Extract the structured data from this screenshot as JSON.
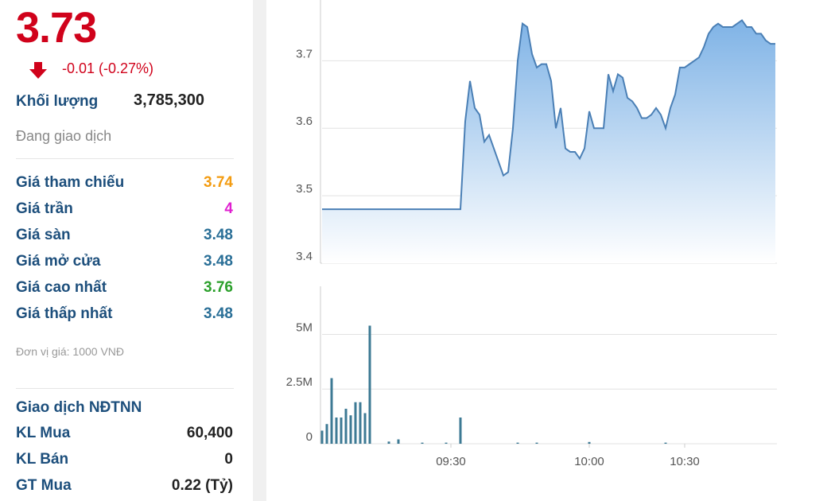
{
  "panel": {
    "price": "3.73",
    "change": "-0.01 (-0.27%)",
    "volume_label": "Khối lượng",
    "volume": "3,785,300",
    "status": "Đang giao dịch",
    "rows": [
      {
        "label": "Giá tham chiếu",
        "value": "3.74",
        "color": "#f39c12"
      },
      {
        "label": "Giá trần",
        "value": "4",
        "color": "#e020d0"
      },
      {
        "label": "Giá sàn",
        "value": "3.48",
        "color": "#2a6f97"
      },
      {
        "label": "Giá mở cửa",
        "value": "3.48",
        "color": "#2a6f97"
      },
      {
        "label": "Giá cao nhất",
        "value": "3.76",
        "color": "#2ca02c"
      },
      {
        "label": "Giá thấp nhất",
        "value": "3.48",
        "color": "#2a6f97"
      }
    ],
    "unit_note": "Đơn vị giá: 1000 VNĐ",
    "foreign_title": "Giao dịch NĐTNN",
    "foreign_rows": [
      {
        "label": "KL Mua",
        "value": "60,400"
      },
      {
        "label": "KL Bán",
        "value": "0"
      },
      {
        "label": "GT Mua",
        "value": "0.22 (Tỷ)"
      }
    ]
  },
  "chart_data": [
    {
      "type": "area",
      "color": "#4a7fb5",
      "values": [
        3.48,
        3.48,
        3.48,
        3.48,
        3.48,
        3.48,
        3.48,
        3.48,
        3.48,
        3.48,
        3.48,
        3.48,
        3.48,
        3.48,
        3.48,
        3.48,
        3.48,
        3.48,
        3.48,
        3.48,
        3.48,
        3.48,
        3.48,
        3.48,
        3.48,
        3.48,
        3.48,
        3.48,
        3.48,
        3.48,
        3.61,
        3.67,
        3.63,
        3.62,
        3.58,
        3.59,
        3.57,
        3.55,
        3.53,
        3.535,
        3.6,
        3.7,
        3.755,
        3.75,
        3.71,
        3.69,
        3.695,
        3.695,
        3.67,
        3.6,
        3.63,
        3.57,
        3.565,
        3.565,
        3.555,
        3.57,
        3.625,
        3.6,
        3.6,
        3.6,
        3.68,
        3.655,
        3.68,
        3.675,
        3.645,
        3.64,
        3.63,
        3.615,
        3.615,
        3.62,
        3.63,
        3.62,
        3.6,
        3.63,
        3.65,
        3.69,
        3.69,
        3.695,
        3.7,
        3.705,
        3.72,
        3.74,
        3.75,
        3.755,
        3.75,
        3.75,
        3.75,
        3.755,
        3.76,
        3.75,
        3.75,
        3.74,
        3.74,
        3.73,
        3.725,
        3.725
      ],
      "ylim": [
        3.4,
        3.79
      ],
      "yticks": [
        3.4,
        3.5,
        3.6,
        3.7
      ],
      "grid": true
    },
    {
      "type": "bar",
      "color": "#3d7a94",
      "categories": [
        null,
        null,
        null,
        null,
        null,
        null,
        null,
        null,
        null,
        null,
        null,
        null,
        null,
        null,
        null,
        null,
        null,
        null,
        null,
        null,
        null,
        null,
        null,
        null,
        null,
        null,
        null,
        "09:30",
        null,
        null,
        null,
        null,
        null,
        null,
        null,
        null,
        null,
        null,
        null,
        null,
        null,
        null,
        null,
        null,
        null,
        null,
        null,
        null,
        null,
        null,
        null,
        null,
        null,
        null,
        null,
        null,
        "10:00",
        null,
        null,
        null,
        null,
        null,
        null,
        null,
        null,
        null,
        null,
        null,
        null,
        null,
        null,
        null,
        null,
        null,
        null,
        null,
        "10:30",
        null,
        null,
        null,
        null,
        null,
        null,
        null,
        null,
        null,
        null,
        null,
        null,
        null,
        null,
        null,
        null,
        null,
        null,
        null
      ],
      "values": [
        600000,
        900000,
        3000000,
        1200000,
        1200000,
        1600000,
        1300000,
        1900000,
        1900000,
        1400000,
        5400000,
        null,
        null,
        null,
        100000,
        null,
        200000,
        null,
        null,
        null,
        null,
        50000,
        null,
        null,
        null,
        null,
        50000,
        null,
        null,
        1200000,
        null,
        null,
        null,
        null,
        null,
        null,
        null,
        null,
        null,
        null,
        null,
        50000,
        null,
        null,
        null,
        50000,
        null,
        null,
        null,
        null,
        null,
        null,
        null,
        null,
        null,
        null,
        80000,
        null,
        null,
        null,
        null,
        null,
        null,
        null,
        null,
        null,
        null,
        null,
        null,
        null,
        null,
        null,
        50000,
        null,
        null,
        null,
        null,
        null,
        null,
        null,
        null,
        null,
        null,
        null,
        null,
        null,
        null,
        null,
        null,
        null,
        null,
        null,
        null,
        null,
        null,
        null
      ],
      "ylim": [
        0,
        7200000
      ],
      "yticks": [
        0,
        {
          "value": 2500000,
          "label": "2.5M"
        },
        {
          "value": 5000000,
          "label": "5M"
        }
      ],
      "grid": true
    }
  ]
}
